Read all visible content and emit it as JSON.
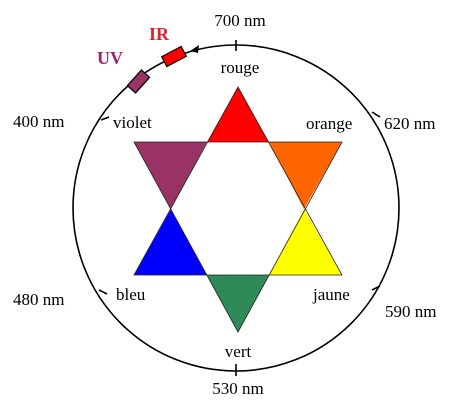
{
  "wavelengths": {
    "top": "700 nm",
    "upper_right": "620 nm",
    "lower_right": "590 nm",
    "bottom": "530 nm",
    "lower_left": "480 nm",
    "upper_left": "400 nm"
  },
  "colors": {
    "rouge": {
      "label": "rouge",
      "fill": "#ff0000"
    },
    "orange": {
      "label": "orange",
      "fill": "#ff6600"
    },
    "jaune": {
      "label": "jaune",
      "fill": "#ffff00"
    },
    "vert": {
      "label": "vert",
      "fill": "#2e8b57"
    },
    "bleu": {
      "label": "bleu",
      "fill": "#0000ff"
    },
    "violet": {
      "label": "violet",
      "fill": "#993366"
    }
  },
  "bands": {
    "infrared": {
      "label": "IR",
      "fill": "#ff0000",
      "text_color": "#e0202a"
    },
    "ultraviolet": {
      "label": "UV",
      "fill": "#993366",
      "text_color": "#a02070"
    }
  },
  "circle_color": "#000000"
}
